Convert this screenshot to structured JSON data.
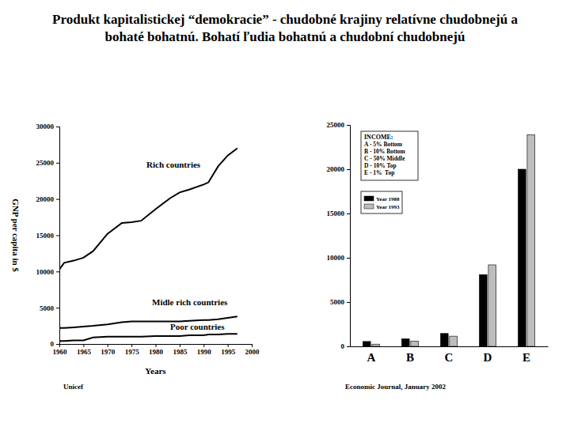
{
  "title": "Produkt kapitalistickej “demokracie” - chudobné krajiny relatívne chudobnejú a bohaté bohatnú. Bohatí ľudia bohatnú a chudobní chudobnejú",
  "chart_data": [
    {
      "type": "line",
      "x_label": "Years",
      "y_label": "GNP per capita in $",
      "source": "Unicef",
      "x": [
        1960,
        1961,
        1963,
        1965,
        1967,
        1970,
        1973,
        1975,
        1977,
        1980,
        1983,
        1985,
        1987,
        1990,
        1991,
        1993,
        1995,
        1997
      ],
      "series": [
        {
          "name": "Rich countries",
          "color": "#000000",
          "values": [
            10300,
            11200,
            11500,
            11900,
            12800,
            15200,
            16700,
            16800,
            17000,
            18600,
            20100,
            20900,
            21300,
            22000,
            22300,
            24500,
            26000,
            27000
          ]
        },
        {
          "name": "Midle rich countries",
          "color": "#000000",
          "values": [
            2200,
            2200,
            2300,
            2400,
            2500,
            2700,
            3000,
            3100,
            3100,
            3100,
            3100,
            3100,
            3200,
            3300,
            3300,
            3400,
            3600,
            3800
          ]
        },
        {
          "name": "Poor countries",
          "color": "#000000",
          "values": [
            400,
            400,
            500,
            500,
            900,
            1000,
            1000,
            1000,
            1000,
            1100,
            1100,
            1100,
            1200,
            1200,
            1300,
            1300,
            1400,
            1400
          ]
        }
      ],
      "xlim": [
        1960,
        2000
      ],
      "xticks": [
        1960,
        1965,
        1970,
        1975,
        1980,
        1985,
        1990,
        1995,
        2000
      ],
      "ylim": [
        0,
        30000
      ],
      "yticks": [
        0,
        5000,
        10000,
        15000,
        20000,
        25000,
        30000
      ],
      "grid": false
    },
    {
      "type": "bar",
      "source": "Economic Journal, January 2002",
      "notes": {
        "title": "INCOME:",
        "items": [
          "A - 5% Bottom",
          "B - 10% Bottom",
          "C - 50% Middle",
          "D - 10% Top",
          "E - 1%  Top"
        ]
      },
      "categories": [
        "A",
        "B",
        "C",
        "D",
        "E"
      ],
      "series": [
        {
          "name": "Year 1988",
          "color": "#000000",
          "values": [
            550,
            850,
            1450,
            8100,
            20000
          ]
        },
        {
          "name": "Year 1993",
          "color": "#bdbdbd",
          "values": [
            250,
            600,
            1150,
            9200,
            23900
          ]
        }
      ],
      "ylim": [
        0,
        25000
      ],
      "yticks": [
        0,
        5000,
        10000,
        15000,
        20000,
        25000
      ],
      "legend": "upper left",
      "grid": false
    }
  ]
}
